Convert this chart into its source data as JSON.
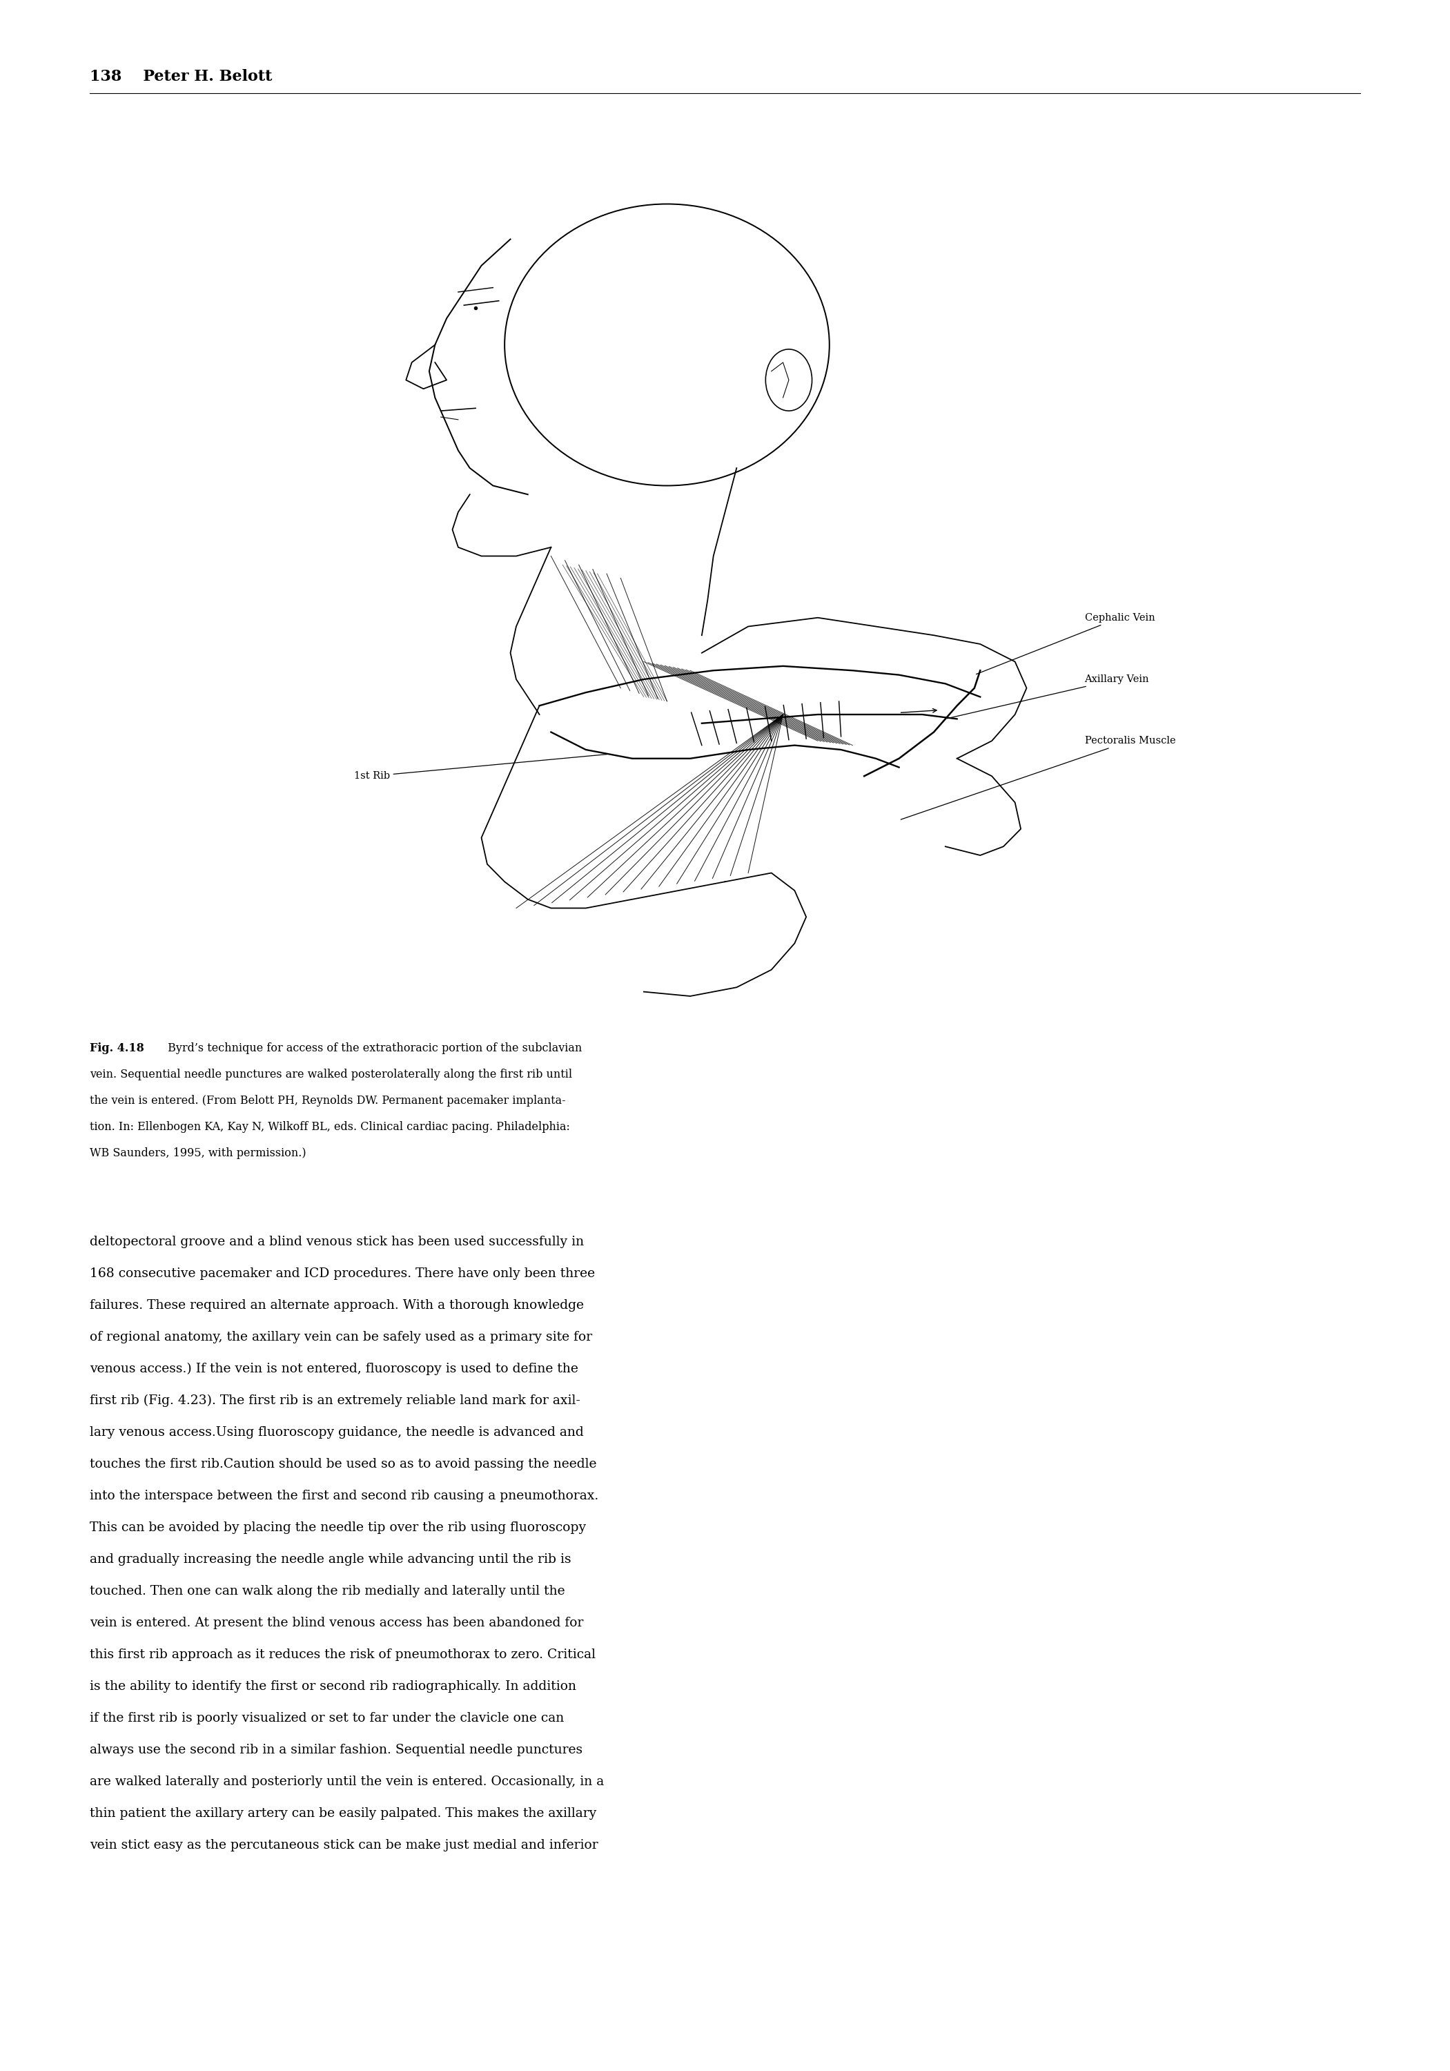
{
  "page_header": "138    Peter H. Belott",
  "figure_caption_bold": "Fig. 4.18",
  "figure_caption_rest": " Byrd’s technique for access of the extrathoracic portion of the subclavian vein. Sequential needle punctures are walked posterolaterally along the first rib until the vein is entered. (From Belott PH, Reynolds DW. Permanent pacemaker implantation. In: Ellenbogen KA, Kay N, Wilkoff BL, eds. Clinical cardiac pacing. Philadelphia: WB Saunders, 1995, with permission.)",
  "body_text_lines": [
    "deltopectoral groove and a blind venous stick has been used successfully in",
    "168 consecutive pacemaker and ICD procedures. There have only been three",
    "failures. These required an alternate approach. With a thorough knowledge",
    "of regional anatomy, the axillary vein can be safely used as a primary site for",
    "venous access.) If the vein is not entered, fluoroscopy is used to define the",
    "first rib (Fig. 4.23). The first rib is an extremely reliable land mark for axil-",
    "lary venous access.Using fluoroscopy guidance, the needle is advanced and",
    "touches the first rib.Caution should be used so as to avoid passing the needle",
    "into the interspace between the first and second rib causing a pneumothorax.",
    "This can be avoided by placing the needle tip over the rib using fluoroscopy",
    "and gradually increasing the needle angle while advancing until the rib is",
    "touched. Then one can walk along the rib medially and laterally until the",
    "vein is entered. At present the blind venous access has been abandoned for",
    "this first rib approach as it reduces the risk of pneumothorax to zero. Critical",
    "is the ability to identify the first or second rib radiographically. In addition",
    "if the first rib is poorly visualized or set to far under the clavicle one can",
    "always use the second rib in a similar fashion. Sequential needle punctures",
    "are walked laterally and posteriorly until the vein is entered. Occasionally, in a",
    "thin patient the axillary artery can be easily palpated. This makes the axillary",
    "vein stict easy as the percutaneous stick can be make just medial and inferior"
  ],
  "bg_color": "#ffffff",
  "text_color": "#000000",
  "annotation_cephalic": "Cephalic Vein",
  "annotation_axillary": "Axillary Vein",
  "annotation_pectoralis": "Pectoralis Muscle",
  "annotation_rib": "1st Rib"
}
